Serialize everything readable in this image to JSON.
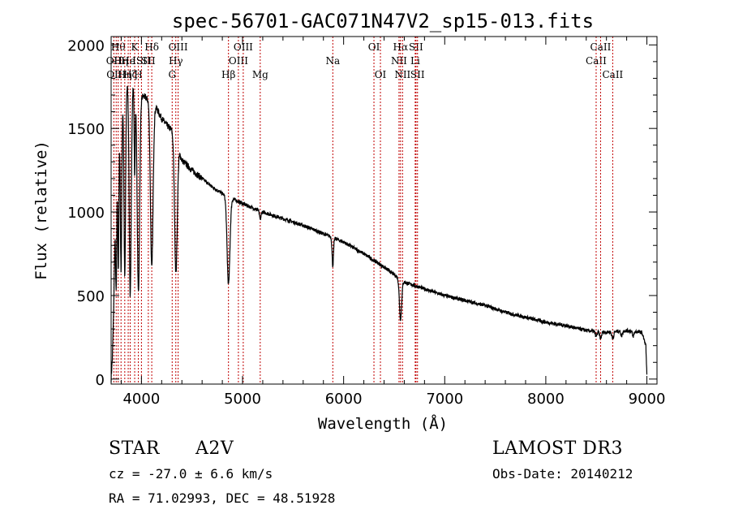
{
  "chart_data": {
    "type": "line",
    "title": "spec-56701-GAC071N47V2_sp15-013.fits",
    "xlabel": "Wavelength (Å)",
    "ylabel": "Flux (relative)",
    "xlim": [
      3700,
      9100
    ],
    "ylim": [
      -30,
      2050
    ],
    "x_ticks": [
      4000,
      5000,
      6000,
      7000,
      8000,
      9000
    ],
    "y_ticks": [
      0,
      500,
      1000,
      1500,
      2000
    ],
    "x_tick_labels": [
      "4000",
      "5000",
      "6000",
      "7000",
      "8000",
      "9000"
    ],
    "y_tick_labels": [
      "0",
      "500",
      "1000",
      "1500",
      "2000"
    ],
    "continuum": [
      [
        3700,
        0
      ],
      [
        3712,
        120
      ],
      [
        3725,
        400
      ],
      [
        3740,
        950
      ],
      [
        3760,
        1380
      ],
      [
        3790,
        1620
      ],
      [
        3820,
        1700
      ],
      [
        3850,
        1760
      ],
      [
        3880,
        1790
      ],
      [
        3920,
        1760
      ],
      [
        3960,
        1740
      ],
      [
        4000,
        1700
      ],
      [
        4050,
        1680
      ],
      [
        4100,
        1660
      ],
      [
        4150,
        1620
      ],
      [
        4200,
        1560
      ],
      [
        4250,
        1520
      ],
      [
        4300,
        1490
      ],
      [
        4400,
        1310
      ],
      [
        4500,
        1250
      ],
      [
        4600,
        1200
      ],
      [
        4700,
        1150
      ],
      [
        4800,
        1110
      ],
      [
        4900,
        1080
      ],
      [
        5000,
        1050
      ],
      [
        5200,
        1000
      ],
      [
        5400,
        960
      ],
      [
        5600,
        920
      ],
      [
        5800,
        870
      ],
      [
        6000,
        820
      ],
      [
        6200,
        750
      ],
      [
        6400,
        670
      ],
      [
        6600,
        580
      ],
      [
        6800,
        540
      ],
      [
        7000,
        500
      ],
      [
        7200,
        470
      ],
      [
        7400,
        440
      ],
      [
        7600,
        400
      ],
      [
        7800,
        370
      ],
      [
        8000,
        340
      ],
      [
        8200,
        320
      ],
      [
        8400,
        290
      ],
      [
        8600,
        280
      ],
      [
        8800,
        290
      ],
      [
        8950,
        280
      ],
      [
        8990,
        200
      ],
      [
        9000,
        20
      ]
    ],
    "absorption": [
      {
        "center": 3750,
        "width": 6,
        "depth": 0.55
      },
      {
        "center": 3771,
        "width": 6,
        "depth": 0.55
      },
      {
        "center": 3798,
        "width": 7,
        "depth": 0.6
      },
      {
        "center": 3835,
        "width": 8,
        "depth": 0.65
      },
      {
        "center": 3889,
        "width": 10,
        "depth": 0.72
      },
      {
        "center": 3933,
        "width": 5,
        "depth": 0.3
      },
      {
        "center": 3970,
        "width": 12,
        "depth": 0.7
      },
      {
        "center": 4102,
        "width": 13,
        "depth": 0.6
      },
      {
        "center": 4341,
        "width": 13,
        "depth": 0.55
      },
      {
        "center": 4861,
        "width": 14,
        "depth": 0.48
      },
      {
        "center": 5175,
        "width": 8,
        "depth": 0.05
      },
      {
        "center": 5893,
        "width": 7,
        "depth": 0.2
      },
      {
        "center": 6563,
        "width": 11,
        "depth": 0.4
      },
      {
        "center": 8498,
        "width": 9,
        "depth": 0.1
      },
      {
        "center": 8542,
        "width": 9,
        "depth": 0.14
      },
      {
        "center": 8662,
        "width": 9,
        "depth": 0.14
      },
      {
        "center": 8750,
        "width": 8,
        "depth": 0.1
      },
      {
        "center": 8865,
        "width": 8,
        "depth": 0.1
      }
    ],
    "line_markers": [
      {
        "wave": 3727,
        "label": "OII",
        "row": 1
      },
      {
        "wave": 3750,
        "label": "OIII",
        "row": 2
      },
      {
        "wave": 3770,
        "label": "Hθ",
        "row": 0
      },
      {
        "wave": 3798,
        "label": "Hη",
        "row": 1
      },
      {
        "wave": 3835,
        "label": "Hη",
        "row": 2
      },
      {
        "wave": 3869,
        "label": "He",
        "row": 1
      },
      {
        "wave": 3889,
        "label": "Hζ",
        "row": 2
      },
      {
        "wave": 3933,
        "label": "K",
        "row": 0
      },
      {
        "wave": 3969,
        "label": "H",
        "row": 2
      },
      {
        "wave": 4000,
        "label": "ISII",
        "row": 1
      },
      {
        "wave": 4068,
        "label": "SII",
        "row": 1
      },
      {
        "wave": 4102,
        "label": "Hδ",
        "row": 0
      },
      {
        "wave": 4304,
        "label": "G",
        "row": 2
      },
      {
        "wave": 4340,
        "label": "Hγ",
        "row": 1
      },
      {
        "wave": 4363,
        "label": "OIII",
        "row": 0
      },
      {
        "wave": 4861,
        "label": "Hβ",
        "row": 2
      },
      {
        "wave": 4959,
        "label": "OIII",
        "row": 1
      },
      {
        "wave": 5007,
        "label": "OIII",
        "row": 0
      },
      {
        "wave": 5175,
        "label": "Mg",
        "row": 2
      },
      {
        "wave": 5893,
        "label": "Na",
        "row": 1
      },
      {
        "wave": 6300,
        "label": "OI",
        "row": 0
      },
      {
        "wave": 6364,
        "label": "OI",
        "row": 2
      },
      {
        "wave": 6548,
        "label": "NII",
        "row": 1
      },
      {
        "wave": 6563,
        "label": "Hα",
        "row": 0
      },
      {
        "wave": 6583,
        "label": "NII",
        "row": 2
      },
      {
        "wave": 6708,
        "label": "Li",
        "row": 1
      },
      {
        "wave": 6716,
        "label": "SII",
        "row": 0
      },
      {
        "wave": 6731,
        "label": "SII",
        "row": 2
      },
      {
        "wave": 8498,
        "label": "CaII",
        "row": 1
      },
      {
        "wave": 8542,
        "label": "CaII",
        "row": 0
      },
      {
        "wave": 8662,
        "label": "CaII",
        "row": 2
      }
    ]
  },
  "info": {
    "object_class": "STAR",
    "subclass": "A2V",
    "survey": "LAMOST DR3",
    "cz": "cz = -27.0 ± 6.6 km/s",
    "obs_date": "Obs-Date: 20140212",
    "coords": "RA =  71.02993, DEC =  48.51928"
  }
}
